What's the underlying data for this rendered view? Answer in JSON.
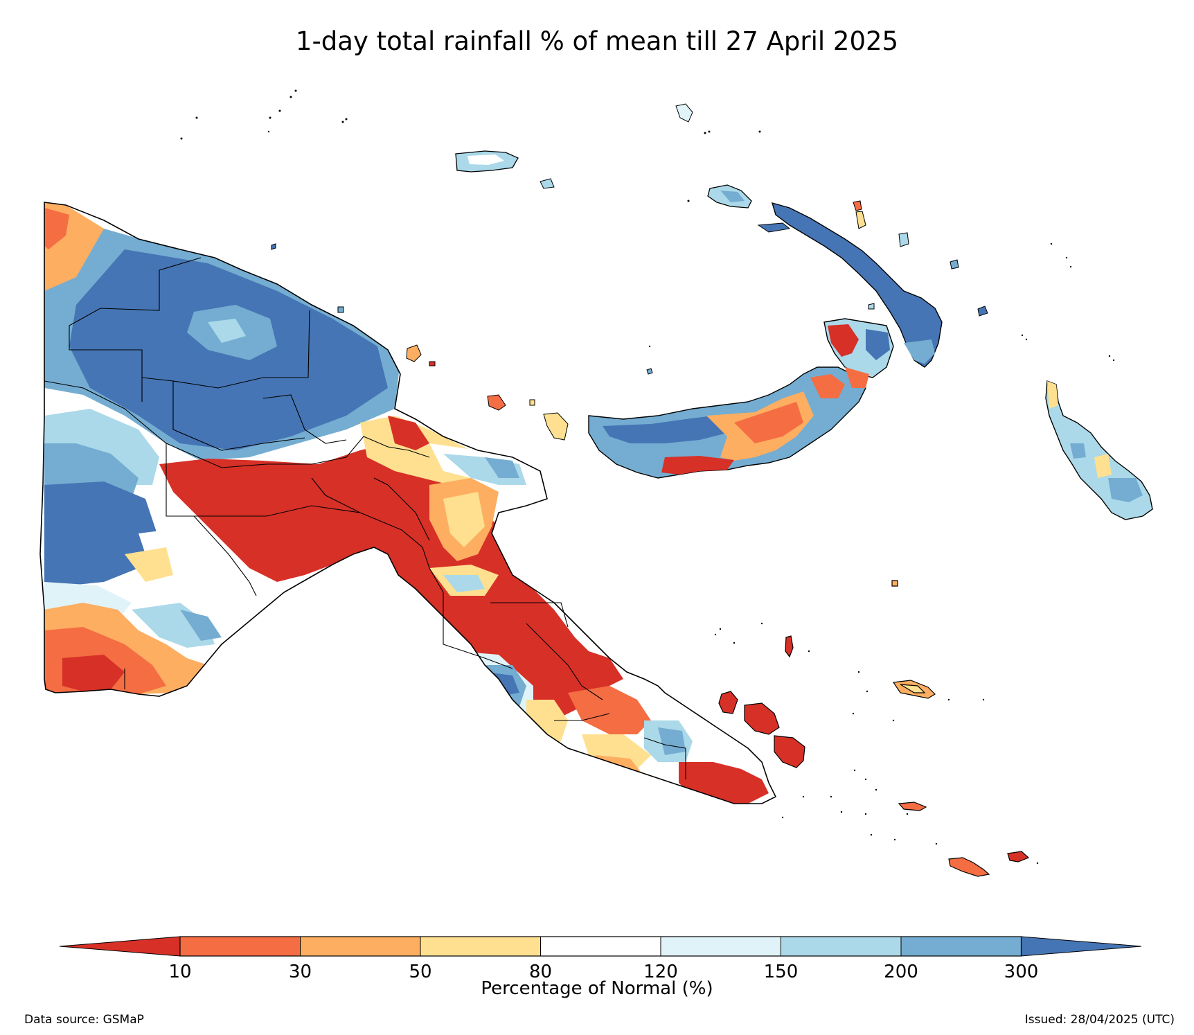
{
  "title": "1-day total rainfall % of mean till 27 April 2025",
  "colorbar": {
    "label": "Percentage of Normal (%)",
    "ticks": [
      "10",
      "30",
      "50",
      "80",
      "120",
      "150",
      "200",
      "300"
    ],
    "colors": {
      "lt10": "#d73027",
      "10-30": "#f46d43",
      "30-50": "#fdae61",
      "50-80": "#fee090",
      "80-120": "#ffffff",
      "120-150": "#e0f3f8",
      "150-200": "#abd9e9",
      "200-300": "#74add1",
      "gt300": "#4575b4"
    }
  },
  "footer": {
    "source": "Data source: GSMaP",
    "issued": "Issued: 28/04/2025 (UTC)"
  }
}
